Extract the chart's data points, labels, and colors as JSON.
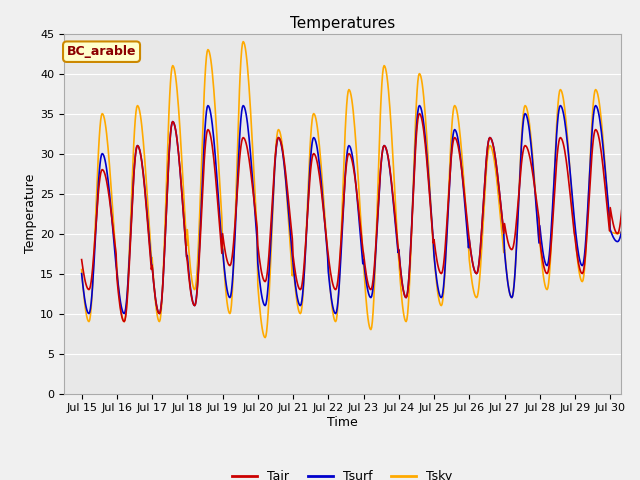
{
  "title": "Temperatures",
  "xlabel": "Time",
  "ylabel": "Temperature",
  "xlim_days": [
    14.5,
    30.3
  ],
  "ylim": [
    0,
    45
  ],
  "yticks": [
    0,
    5,
    10,
    15,
    20,
    25,
    30,
    35,
    40,
    45
  ],
  "xtick_labels": [
    "Jul 15",
    "Jul 16",
    "Jul 17",
    "Jul 18",
    "Jul 19",
    "Jul 20",
    "Jul 21",
    "Jul 22",
    "Jul 23",
    "Jul 24",
    "Jul 25",
    "Jul 26",
    "Jul 27",
    "Jul 28",
    "Jul 29",
    "Jul 30"
  ],
  "xtick_positions": [
    15,
    16,
    17,
    18,
    19,
    20,
    21,
    22,
    23,
    24,
    25,
    26,
    27,
    28,
    29,
    30
  ],
  "tair_color": "#cc0000",
  "tsurf_color": "#0000cc",
  "tsky_color": "#ffaa00",
  "background_inner": "#e8e8e8",
  "background_outer": "#f0f0f0",
  "legend_box_color": "#ffffcc",
  "legend_box_edge": "#cc8800",
  "annotation_text": "BC_arable",
  "annotation_color": "#8b0000",
  "title_fontsize": 11,
  "axis_fontsize": 9,
  "tick_fontsize": 8,
  "legend_fontsize": 9,
  "day_peaks_air": [
    28,
    31,
    34,
    33,
    32,
    32,
    30,
    30,
    31,
    35,
    32,
    32,
    31,
    32,
    33,
    33
  ],
  "day_troughs_air": [
    13,
    9,
    10,
    11,
    16,
    14,
    13,
    13,
    13,
    12,
    15,
    15,
    18,
    15,
    15,
    20
  ],
  "day_peaks_surf": [
    30,
    31,
    34,
    36,
    36,
    32,
    32,
    31,
    31,
    36,
    33,
    32,
    35,
    36,
    36,
    25
  ],
  "day_troughs_surf": [
    10,
    10,
    10,
    11,
    12,
    11,
    11,
    10,
    12,
    12,
    12,
    15,
    12,
    16,
    16,
    19
  ],
  "day_peaks_sky": [
    35,
    36,
    41,
    43,
    44,
    33,
    35,
    38,
    41,
    40,
    36,
    31,
    36,
    38,
    38,
    21
  ],
  "day_troughs_sky": [
    9,
    9,
    9,
    13,
    10,
    7,
    10,
    9,
    8,
    9,
    11,
    12,
    12,
    13,
    14,
    20
  ]
}
